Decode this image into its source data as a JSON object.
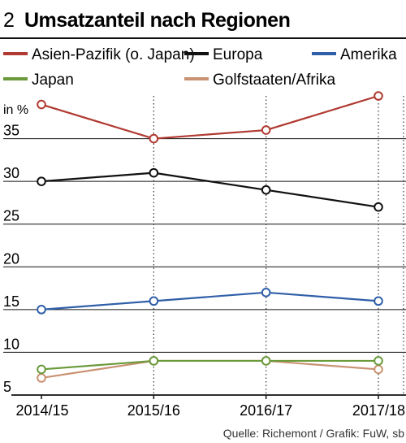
{
  "header": {
    "number": "2",
    "title": "Umsatzanteil nach Regionen"
  },
  "source": "Quelle: Richemont / Grafik: FuW, sb",
  "chart_data": {
    "type": "line",
    "title": "Umsatzanteil nach Regionen",
    "ylabel": "in %",
    "xlabel": "",
    "ylim": [
      5,
      40
    ],
    "yticks": [
      5,
      10,
      15,
      20,
      25,
      30,
      35
    ],
    "grid": true,
    "legend_position": "top",
    "categories": [
      "2014/15",
      "2015/16",
      "2016/17",
      "2017/18"
    ],
    "series": [
      {
        "name": "Asien-Pazifik (o. Japan)",
        "color": "#b03a32",
        "values": [
          39,
          35,
          36,
          40
        ]
      },
      {
        "name": "Europa",
        "color": "#111111",
        "values": [
          30,
          31,
          29,
          27
        ]
      },
      {
        "name": "Amerika",
        "color": "#2f5fa8",
        "values": [
          15,
          16,
          17,
          16
        ]
      },
      {
        "name": "Japan",
        "color": "#6a9a3a",
        "values": [
          8,
          9,
          9,
          9
        ]
      },
      {
        "name": "Golfstaaten/Afrika",
        "color": "#c99272",
        "values": [
          7,
          9,
          9,
          8
        ]
      }
    ]
  }
}
